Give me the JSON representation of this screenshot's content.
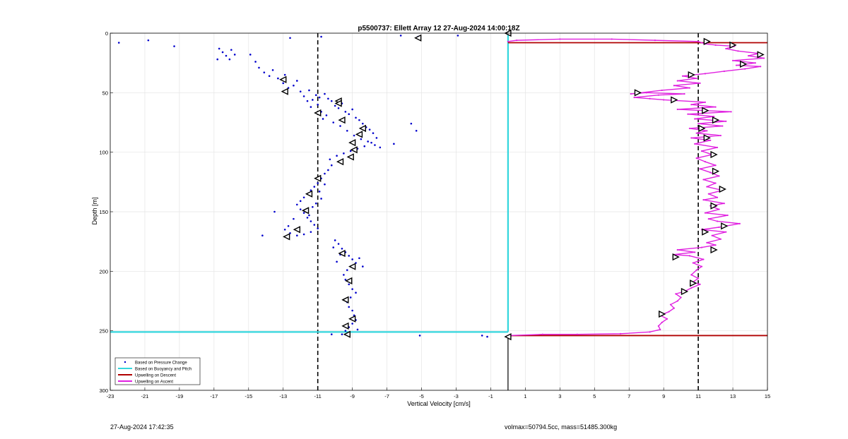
{
  "chart_data": {
    "type": "scatter",
    "title": "p5500737: Ellett Array 12 27-Aug-2024 14:00:18Z",
    "xlabel": "Vertical Velocity [cm/s]",
    "ylabel": "Depth [m]",
    "xlim": [
      -23,
      15
    ],
    "ylim": [
      0,
      300
    ],
    "y_reversed": true,
    "grid": true,
    "x_ticks": [
      -23,
      -21,
      -19,
      -17,
      -15,
      -13,
      -11,
      -9,
      -7,
      -5,
      -3,
      -1,
      1,
      3,
      5,
      7,
      9,
      11,
      13,
      15
    ],
    "y_ticks": [
      0,
      50,
      100,
      150,
      200,
      250,
      300
    ],
    "reference_lines": [
      {
        "x": -11,
        "style": "dashed",
        "color": "#000000"
      },
      {
        "x": 11,
        "style": "dashed",
        "color": "#000000"
      }
    ],
    "legend": {
      "placement": "bottom-left",
      "entries": [
        {
          "label": "Based on Pressure Change",
          "color": "#0000cc",
          "marker": "dot"
        },
        {
          "label": "Based on Buoyancy and Pitch",
          "color": "#33d6dd",
          "marker": "line"
        },
        {
          "label": "Upwelling on Descent",
          "color": "#b00000",
          "marker": "line"
        },
        {
          "label": "Upwelling on Ascent",
          "color": "#e020e0",
          "marker": "line"
        }
      ]
    },
    "series": [
      {
        "name": "Based on Pressure Change",
        "color": "#0000cc",
        "points": [
          [
            -22.5,
            8
          ],
          [
            -20.8,
            6
          ],
          [
            -19.3,
            11
          ],
          [
            -16.7,
            13
          ],
          [
            -16.5,
            16
          ],
          [
            -16.3,
            19
          ],
          [
            -16.1,
            22
          ],
          [
            -16.8,
            22
          ],
          [
            -15.8,
            18
          ],
          [
            -16.0,
            14
          ],
          [
            -14.9,
            18
          ],
          [
            -14.6,
            24
          ],
          [
            -14.4,
            29
          ],
          [
            -14.1,
            33
          ],
          [
            -13.8,
            36
          ],
          [
            -13.6,
            31
          ],
          [
            -13.3,
            38
          ],
          [
            -13.0,
            42
          ],
          [
            -12.7,
            46
          ],
          [
            -12.4,
            44
          ],
          [
            -12.9,
            35
          ],
          [
            -12.2,
            40
          ],
          [
            -12.0,
            49
          ],
          [
            -11.8,
            53
          ],
          [
            -11.6,
            57
          ],
          [
            -11.5,
            48
          ],
          [
            -11.4,
            62
          ],
          [
            -11.3,
            56
          ],
          [
            -11.1,
            52
          ],
          [
            -10.9,
            54
          ],
          [
            -10.6,
            51
          ],
          [
            -10.4,
            55
          ],
          [
            -10.2,
            57
          ],
          [
            -10.0,
            61
          ],
          [
            -9.8,
            63
          ],
          [
            -9.6,
            59
          ],
          [
            -9.4,
            66
          ],
          [
            -9.2,
            68
          ],
          [
            -9.0,
            64
          ],
          [
            -8.8,
            71
          ],
          [
            -8.6,
            73
          ],
          [
            -8.4,
            76
          ],
          [
            -8.2,
            79
          ],
          [
            -8.0,
            81
          ],
          [
            -7.8,
            84
          ],
          [
            -7.6,
            88
          ],
          [
            -7.9,
            92
          ],
          [
            -8.3,
            95
          ],
          [
            -8.7,
            97
          ],
          [
            -9.1,
            99
          ],
          [
            -9.5,
            101
          ],
          [
            -9.9,
            103
          ],
          [
            -10.3,
            106
          ],
          [
            -10.7,
            72
          ],
          [
            -11.0,
            60
          ],
          [
            -10.8,
            66
          ],
          [
            -10.5,
            69
          ],
          [
            -10.1,
            75
          ],
          [
            -9.7,
            78
          ],
          [
            -9.3,
            82
          ],
          [
            -8.9,
            86
          ],
          [
            -8.5,
            89
          ],
          [
            -8.1,
            91
          ],
          [
            -7.7,
            94
          ],
          [
            -7.4,
            96
          ],
          [
            -6.6,
            93
          ],
          [
            -5.3,
            82
          ],
          [
            -5.6,
            76
          ],
          [
            -10.2,
            111
          ],
          [
            -10.4,
            115
          ],
          [
            -10.6,
            118
          ],
          [
            -10.8,
            122
          ],
          [
            -11.0,
            126
          ],
          [
            -11.2,
            129
          ],
          [
            -11.4,
            132
          ],
          [
            -11.6,
            135
          ],
          [
            -11.8,
            138
          ],
          [
            -12.0,
            141
          ],
          [
            -12.2,
            144
          ],
          [
            -12.0,
            148
          ],
          [
            -11.8,
            151
          ],
          [
            -11.6,
            155
          ],
          [
            -11.4,
            158
          ],
          [
            -11.2,
            161
          ],
          [
            -11.0,
            164
          ],
          [
            -11.4,
            167
          ],
          [
            -11.8,
            169
          ],
          [
            -12.2,
            170
          ],
          [
            -12.6,
            168
          ],
          [
            -12.9,
            165
          ],
          [
            -13.5,
            150
          ],
          [
            -14.2,
            170
          ],
          [
            -11.1,
            143
          ],
          [
            -10.8,
            139
          ],
          [
            -11.3,
            146
          ],
          [
            -11.5,
            153
          ],
          [
            -12.4,
            156
          ],
          [
            -12.7,
            162
          ],
          [
            -10.9,
            133
          ],
          [
            -10.6,
            127
          ],
          [
            -10.0,
            174
          ],
          [
            -9.8,
            177
          ],
          [
            -9.6,
            181
          ],
          [
            -9.4,
            184
          ],
          [
            -9.2,
            187
          ],
          [
            -9.0,
            190
          ],
          [
            -8.8,
            193
          ],
          [
            -9.1,
            196
          ],
          [
            -9.3,
            199
          ],
          [
            -9.5,
            203
          ],
          [
            -9.4,
            207
          ],
          [
            -9.2,
            211
          ],
          [
            -9.0,
            215
          ],
          [
            -8.8,
            218
          ],
          [
            -9.1,
            222
          ],
          [
            -9.3,
            226
          ],
          [
            -9.2,
            230
          ],
          [
            -9.0,
            233
          ],
          [
            -8.9,
            237
          ],
          [
            -8.8,
            241
          ],
          [
            -9.0,
            244
          ],
          [
            -9.2,
            247
          ],
          [
            -9.4,
            250
          ],
          [
            -9.6,
            253
          ],
          [
            -8.7,
            249
          ],
          [
            -8.4,
            196
          ],
          [
            -8.6,
            189
          ],
          [
            -9.7,
            186
          ],
          [
            -9.9,
            192
          ],
          [
            -10.1,
            180
          ],
          [
            -12.6,
            4
          ],
          [
            -5.2,
            3
          ],
          [
            -6.2,
            2
          ],
          [
            -10.8,
            3
          ],
          [
            -2.9,
            2
          ],
          [
            -5.1,
            254
          ],
          [
            -1.5,
            254
          ],
          [
            -1.2,
            255
          ],
          [
            -0.1,
            255
          ],
          [
            -10.2,
            253
          ]
        ]
      },
      {
        "name": "Based on Buoyancy and Pitch",
        "color": "#33d6dd",
        "segments": [
          [
            [
              0,
              0
            ],
            [
              0,
              251
            ]
          ],
          [
            [
              0,
              251
            ],
            [
              -23,
              251
            ]
          ]
        ]
      },
      {
        "name": "Upwelling on Descent",
        "color": "#b00000",
        "segments": [
          [
            [
              0,
              8
            ],
            [
              15,
              8
            ]
          ],
          [
            [
              0,
              254
            ],
            [
              15,
              254
            ]
          ]
        ]
      },
      {
        "name": "Upwelling on Ascent",
        "color": "#e020e0",
        "points": [
          [
            0,
            254
          ],
          [
            2,
            253
          ],
          [
            4,
            253
          ],
          [
            6.5,
            252.5
          ],
          [
            8.2,
            251
          ],
          [
            8.8,
            249
          ],
          [
            8.7,
            246
          ],
          [
            8.9,
            243
          ],
          [
            9.2,
            240
          ],
          [
            8.8,
            237
          ],
          [
            9.3,
            234
          ],
          [
            9.6,
            231
          ],
          [
            9.4,
            228
          ],
          [
            9.8,
            225
          ],
          [
            10.0,
            222
          ],
          [
            9.7,
            219
          ],
          [
            10.2,
            217
          ],
          [
            10.6,
            214
          ],
          [
            11.1,
            211
          ],
          [
            10.7,
            209
          ],
          [
            11.0,
            206
          ],
          [
            10.6,
            203
          ],
          [
            10.9,
            199
          ],
          [
            11.2,
            196
          ],
          [
            10.7,
            193
          ],
          [
            11.3,
            190
          ],
          [
            10.5,
            187
          ],
          [
            9.6,
            186
          ],
          [
            10.8,
            184
          ],
          [
            9.8,
            182
          ],
          [
            11.2,
            180
          ],
          [
            12.0,
            178
          ],
          [
            11.5,
            176
          ],
          [
            12.3,
            173
          ],
          [
            11.8,
            170
          ],
          [
            12.6,
            167
          ],
          [
            11.2,
            165
          ],
          [
            12.2,
            163
          ],
          [
            13.4,
            160
          ],
          [
            12.1,
            158
          ],
          [
            11.6,
            156
          ],
          [
            12.7,
            153
          ],
          [
            11.4,
            151
          ],
          [
            12.2,
            148
          ],
          [
            11.7,
            145
          ],
          [
            12.5,
            143
          ],
          [
            11.3,
            140
          ],
          [
            12.1,
            138
          ],
          [
            11.6,
            135
          ],
          [
            12.4,
            132
          ],
          [
            11.5,
            129
          ],
          [
            12.0,
            126
          ],
          [
            11.3,
            123
          ],
          [
            12.2,
            120
          ],
          [
            11.7,
            117
          ],
          [
            11.1,
            114
          ],
          [
            12.0,
            111
          ],
          [
            11.4,
            108
          ],
          [
            10.9,
            105
          ],
          [
            11.8,
            102
          ],
          [
            11.2,
            99
          ],
          [
            12.1,
            96
          ],
          [
            10.8,
            93
          ],
          [
            11.7,
            90
          ],
          [
            10.6,
            88
          ],
          [
            12.3,
            86
          ],
          [
            10.9,
            84
          ],
          [
            11.5,
            82
          ],
          [
            10.5,
            80
          ],
          [
            12.4,
            78
          ],
          [
            11.0,
            76
          ],
          [
            12.6,
            74
          ],
          [
            10.8,
            72
          ],
          [
            11.9,
            70
          ],
          [
            10.4,
            68
          ],
          [
            12.9,
            66
          ],
          [
            9.8,
            64
          ],
          [
            12.0,
            62
          ],
          [
            10.6,
            60
          ],
          [
            11.4,
            58
          ],
          [
            9.0,
            56
          ],
          [
            8.2,
            55
          ],
          [
            7.3,
            54
          ],
          [
            8.7,
            52
          ],
          [
            10.2,
            51
          ],
          [
            8.0,
            50
          ],
          [
            7.1,
            51
          ],
          [
            8.9,
            48
          ],
          [
            10.5,
            46
          ],
          [
            9.6,
            44
          ],
          [
            11.1,
            42
          ],
          [
            9.8,
            40
          ],
          [
            10.9,
            38
          ],
          [
            10.1,
            36
          ],
          [
            11.4,
            34
          ],
          [
            12.5,
            32
          ],
          [
            13.7,
            30
          ],
          [
            14.6,
            28
          ],
          [
            13.2,
            27
          ],
          [
            14.3,
            25
          ],
          [
            13.0,
            23
          ],
          [
            14.8,
            21
          ],
          [
            13.9,
            19
          ],
          [
            14.5,
            17
          ],
          [
            13.3,
            15
          ],
          [
            12.6,
            13
          ],
          [
            13.1,
            11
          ],
          [
            12.0,
            10
          ],
          [
            11.4,
            9
          ],
          [
            11.0,
            7
          ],
          [
            8.5,
            6
          ],
          [
            6.0,
            5
          ],
          [
            3.0,
            5
          ],
          [
            0.5,
            6
          ],
          [
            0,
            7
          ]
        ]
      }
    ],
    "descent_markers": [
      [
        -13.0,
        39
      ],
      [
        -12.9,
        49
      ],
      [
        -11.0,
        67
      ],
      [
        -9.8,
        57
      ],
      [
        -9.8,
        59
      ],
      [
        -9.6,
        73
      ],
      [
        -8.4,
        80
      ],
      [
        -8.6,
        85
      ],
      [
        -9.0,
        92
      ],
      [
        -8.9,
        98
      ],
      [
        -9.1,
        104
      ],
      [
        -9.7,
        108
      ],
      [
        -11.0,
        122
      ],
      [
        -11.5,
        135
      ],
      [
        -11.7,
        149
      ],
      [
        -12.2,
        165
      ],
      [
        -12.8,
        171
      ],
      [
        -9.6,
        185
      ],
      [
        -9.0,
        196
      ],
      [
        -9.2,
        208
      ],
      [
        -9.4,
        224
      ],
      [
        -9.0,
        240
      ],
      [
        -9.4,
        246
      ],
      [
        -9.3,
        253
      ],
      [
        -5.2,
        4
      ],
      [
        0,
        0
      ],
      [
        0,
        255
      ]
    ],
    "ascent_markers": [
      [
        11.5,
        7
      ],
      [
        13.0,
        10
      ],
      [
        14.6,
        18
      ],
      [
        13.6,
        26
      ],
      [
        10.6,
        35
      ],
      [
        7.5,
        50
      ],
      [
        9.6,
        56
      ],
      [
        11.4,
        65
      ],
      [
        12.0,
        73
      ],
      [
        11.2,
        80
      ],
      [
        11.5,
        88
      ],
      [
        11.9,
        102
      ],
      [
        12.0,
        116
      ],
      [
        12.4,
        131
      ],
      [
        11.9,
        145
      ],
      [
        12.5,
        162
      ],
      [
        11.4,
        167
      ],
      [
        11.9,
        182
      ],
      [
        9.7,
        188
      ],
      [
        10.7,
        210
      ],
      [
        10.2,
        217
      ],
      [
        8.9,
        236
      ]
    ]
  },
  "footer": {
    "timestamp": "27-Aug-2024 17:42:35",
    "mass_info": "volmax=50794.5cc, mass=51485.300kg"
  }
}
